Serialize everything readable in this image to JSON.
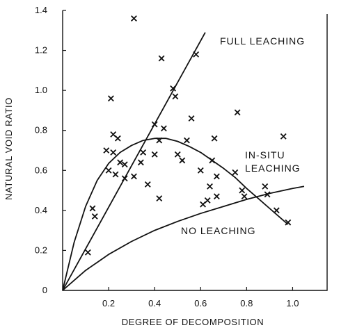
{
  "chart_data": {
    "type": "scatter",
    "xlabel": "DEGREE OF DECOMPOSITION",
    "ylabel": "NATURAL VOID RATIO",
    "xlim": [
      0,
      1.15
    ],
    "ylim": [
      0,
      1.4
    ],
    "xticks": [
      "0.2",
      "0.4",
      "0.6",
      "0.8",
      "1.0"
    ],
    "yticks": [
      "0",
      "0.2",
      "0.4",
      "0.6",
      "0.8",
      "1.0",
      "1.2",
      "1.4"
    ],
    "grid": false,
    "marker": "x",
    "points": [
      [
        0.31,
        1.36
      ],
      [
        0.43,
        1.16
      ],
      [
        0.58,
        1.18
      ],
      [
        0.48,
        1.01
      ],
      [
        0.49,
        0.97
      ],
      [
        0.21,
        0.96
      ],
      [
        0.4,
        0.83
      ],
      [
        0.44,
        0.81
      ],
      [
        0.56,
        0.86
      ],
      [
        0.76,
        0.89
      ],
      [
        0.96,
        0.77
      ],
      [
        0.22,
        0.78
      ],
      [
        0.24,
        0.76
      ],
      [
        0.42,
        0.75
      ],
      [
        0.54,
        0.75
      ],
      [
        0.66,
        0.76
      ],
      [
        0.19,
        0.7
      ],
      [
        0.22,
        0.69
      ],
      [
        0.35,
        0.69
      ],
      [
        0.4,
        0.68
      ],
      [
        0.5,
        0.68
      ],
      [
        0.25,
        0.64
      ],
      [
        0.27,
        0.63
      ],
      [
        0.34,
        0.64
      ],
      [
        0.52,
        0.65
      ],
      [
        0.65,
        0.65
      ],
      [
        0.2,
        0.6
      ],
      [
        0.23,
        0.58
      ],
      [
        0.27,
        0.56
      ],
      [
        0.31,
        0.57
      ],
      [
        0.6,
        0.6
      ],
      [
        0.75,
        0.59
      ],
      [
        0.37,
        0.53
      ],
      [
        0.64,
        0.52
      ],
      [
        0.67,
        0.57
      ],
      [
        0.78,
        0.5
      ],
      [
        0.79,
        0.47
      ],
      [
        0.88,
        0.52
      ],
      [
        0.89,
        0.48
      ],
      [
        0.42,
        0.46
      ],
      [
        0.61,
        0.43
      ],
      [
        0.63,
        0.45
      ],
      [
        0.67,
        0.47
      ],
      [
        0.93,
        0.4
      ],
      [
        0.98,
        0.34
      ],
      [
        0.13,
        0.41
      ],
      [
        0.14,
        0.37
      ],
      [
        0.11,
        0.19
      ]
    ],
    "curves": [
      {
        "label": "FULL LEACHING",
        "points": [
          [
            0,
            0
          ],
          [
            0.62,
            1.29
          ]
        ]
      },
      {
        "label": "IN-SITU LEACHING",
        "points": [
          [
            0,
            0
          ],
          [
            0.05,
            0.24
          ],
          [
            0.1,
            0.42
          ],
          [
            0.15,
            0.55
          ],
          [
            0.2,
            0.635
          ],
          [
            0.25,
            0.69
          ],
          [
            0.3,
            0.725
          ],
          [
            0.35,
            0.75
          ],
          [
            0.4,
            0.76
          ],
          [
            0.45,
            0.76
          ],
          [
            0.5,
            0.745
          ],
          [
            0.55,
            0.72
          ],
          [
            0.6,
            0.69
          ],
          [
            0.65,
            0.65
          ],
          [
            0.7,
            0.61
          ],
          [
            0.75,
            0.565
          ],
          [
            0.8,
            0.51
          ],
          [
            0.85,
            0.46
          ],
          [
            0.9,
            0.41
          ],
          [
            0.95,
            0.36
          ],
          [
            0.98,
            0.33
          ]
        ]
      },
      {
        "label": "NO LEACHING",
        "points": [
          [
            0,
            0
          ],
          [
            0.05,
            0.05
          ],
          [
            0.1,
            0.1
          ],
          [
            0.15,
            0.14
          ],
          [
            0.2,
            0.18
          ],
          [
            0.3,
            0.245
          ],
          [
            0.4,
            0.3
          ],
          [
            0.5,
            0.345
          ],
          [
            0.6,
            0.385
          ],
          [
            0.7,
            0.42
          ],
          [
            0.8,
            0.455
          ],
          [
            0.9,
            0.485
          ],
          [
            1.0,
            0.51
          ],
          [
            1.05,
            0.52
          ]
        ]
      }
    ]
  }
}
